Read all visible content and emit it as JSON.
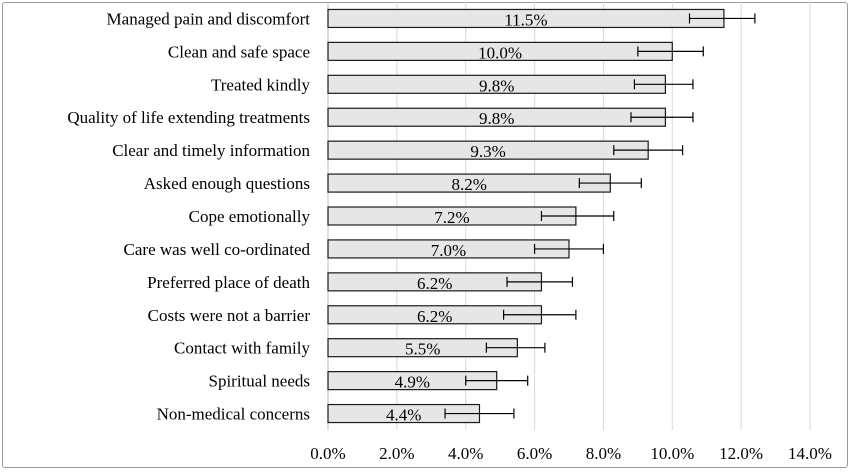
{
  "chart_data": {
    "type": "bar",
    "orientation": "horizontal",
    "categories": [
      "Managed pain and discomfort",
      "Clean and safe space",
      "Treated kindly",
      "Quality of life extending treatments",
      "Clear and timely information",
      "Asked enough questions",
      "Cope emotionally",
      "Care was well co-ordinated",
      "Preferred place of death",
      "Costs were not a barrier",
      "Contact with family",
      "Spiritual needs",
      "Non-medical concerns"
    ],
    "values": [
      11.5,
      10.0,
      9.8,
      9.8,
      9.3,
      8.2,
      7.2,
      7.0,
      6.2,
      6.2,
      5.5,
      4.9,
      4.4
    ],
    "data_labels": [
      "11.5%",
      "10.0%",
      "9.8%",
      "9.8%",
      "9.3%",
      "8.2%",
      "7.2%",
      "7.0%",
      "6.2%",
      "6.2%",
      "5.5%",
      "4.9%",
      "4.4%"
    ],
    "error_low": [
      10.5,
      9.0,
      8.9,
      8.8,
      8.3,
      7.3,
      6.2,
      6.0,
      5.2,
      5.1,
      4.6,
      4.0,
      3.4
    ],
    "error_high": [
      12.4,
      10.9,
      10.6,
      10.6,
      10.3,
      9.1,
      8.3,
      8.0,
      7.1,
      7.2,
      6.3,
      5.8,
      5.4
    ],
    "xlim": [
      0,
      14
    ],
    "x_ticks": [
      0,
      2,
      4,
      6,
      8,
      10,
      12,
      14
    ],
    "x_tick_labels": [
      "0.0%",
      "2.0%",
      "4.0%",
      "6.0%",
      "8.0%",
      "10.0%",
      "12.0%",
      "14.0%"
    ],
    "grid": "vertical",
    "bar_fill": "#e6e6e6",
    "bar_stroke": "#1a1a1a",
    "grid_color": "#d9d9d9",
    "title": "",
    "xlabel": "",
    "ylabel": ""
  }
}
